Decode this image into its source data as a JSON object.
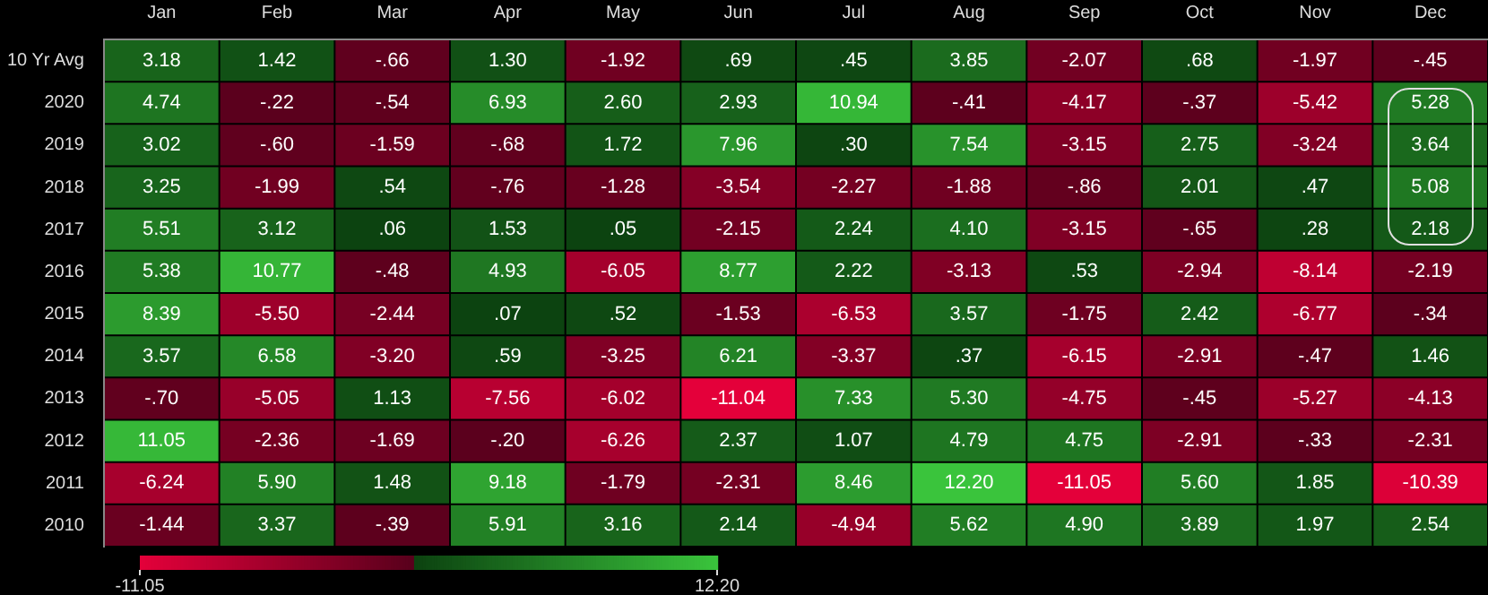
{
  "chart_data": {
    "type": "heatmap",
    "categories": [
      "Jan",
      "Feb",
      "Mar",
      "Apr",
      "May",
      "Jun",
      "Jul",
      "Aug",
      "Sep",
      "Oct",
      "Nov",
      "Dec"
    ],
    "y_categories": [
      "10 Yr Avg",
      "2020",
      "2019",
      "2018",
      "2017",
      "2016",
      "2015",
      "2014",
      "2013",
      "2012",
      "2011",
      "2010"
    ],
    "cells": [
      [
        3.18,
        1.42,
        -0.66,
        1.3,
        -1.92,
        0.69,
        0.45,
        3.85,
        -2.07,
        0.68,
        -1.97,
        -0.45
      ],
      [
        4.74,
        -0.22,
        -0.54,
        6.93,
        2.6,
        2.93,
        10.94,
        -0.41,
        -4.17,
        -0.37,
        -5.42,
        5.28
      ],
      [
        3.02,
        -0.6,
        -1.59,
        -0.68,
        1.72,
        7.96,
        0.3,
        7.54,
        -3.15,
        2.75,
        -3.24,
        3.64
      ],
      [
        3.25,
        -1.99,
        0.54,
        -0.76,
        -1.28,
        -3.54,
        -2.27,
        -1.88,
        -0.86,
        2.01,
        0.47,
        5.08
      ],
      [
        5.51,
        3.12,
        0.06,
        1.53,
        0.05,
        -2.15,
        2.24,
        4.1,
        -3.15,
        -0.65,
        0.28,
        2.18
      ],
      [
        5.38,
        10.77,
        -0.48,
        4.93,
        -6.05,
        8.77,
        2.22,
        -3.13,
        0.53,
        -2.94,
        -8.14,
        -2.19
      ],
      [
        8.39,
        -5.5,
        -2.44,
        0.07,
        0.52,
        -1.53,
        -6.53,
        3.57,
        -1.75,
        2.42,
        -6.77,
        -0.34
      ],
      [
        3.57,
        6.58,
        -3.2,
        0.59,
        -3.25,
        6.21,
        -3.37,
        0.37,
        -6.15,
        -2.91,
        -0.47,
        1.46
      ],
      [
        -0.7,
        -5.05,
        1.13,
        -7.56,
        -6.02,
        -11.04,
        7.33,
        5.3,
        -4.75,
        -0.45,
        -5.27,
        -4.13
      ],
      [
        11.05,
        -2.36,
        -1.69,
        -0.2,
        -6.26,
        2.37,
        1.07,
        4.79,
        4.75,
        -2.91,
        -0.33,
        -2.31
      ],
      [
        -6.24,
        5.9,
        1.48,
        9.18,
        -1.79,
        -2.31,
        8.46,
        12.2,
        -11.05,
        5.6,
        1.85,
        -10.39
      ],
      [
        -1.44,
        3.37,
        -0.39,
        5.91,
        3.16,
        2.14,
        -4.94,
        5.62,
        4.9,
        3.89,
        1.97,
        2.54
      ]
    ],
    "cell_labels": [
      [
        "3.18",
        "1.42",
        "-.66",
        "1.30",
        "-1.92",
        ".69",
        ".45",
        "3.85",
        "-2.07",
        ".68",
        "-1.97",
        "-.45"
      ],
      [
        "4.74",
        "-.22",
        "-.54",
        "6.93",
        "2.60",
        "2.93",
        "10.94",
        "-.41",
        "-4.17",
        "-.37",
        "-5.42",
        "5.28"
      ],
      [
        "3.02",
        "-.60",
        "-1.59",
        "-.68",
        "1.72",
        "7.96",
        ".30",
        "7.54",
        "-3.15",
        "2.75",
        "-3.24",
        "3.64"
      ],
      [
        "3.25",
        "-1.99",
        ".54",
        "-.76",
        "-1.28",
        "-3.54",
        "-2.27",
        "-1.88",
        "-.86",
        "2.01",
        ".47",
        "5.08"
      ],
      [
        "5.51",
        "3.12",
        ".06",
        "1.53",
        ".05",
        "-2.15",
        "2.24",
        "4.10",
        "-3.15",
        "-.65",
        ".28",
        "2.18"
      ],
      [
        "5.38",
        "10.77",
        "-.48",
        "4.93",
        "-6.05",
        "8.77",
        "2.22",
        "-3.13",
        ".53",
        "-2.94",
        "-8.14",
        "-2.19"
      ],
      [
        "8.39",
        "-5.50",
        "-2.44",
        ".07",
        ".52",
        "-1.53",
        "-6.53",
        "3.57",
        "-1.75",
        "2.42",
        "-6.77",
        "-.34"
      ],
      [
        "3.57",
        "6.58",
        "-3.20",
        ".59",
        "-3.25",
        "6.21",
        "-3.37",
        ".37",
        "-6.15",
        "-2.91",
        "-.47",
        "1.46"
      ],
      [
        "-.70",
        "-5.05",
        "1.13",
        "-7.56",
        "-6.02",
        "-11.04",
        "7.33",
        "5.30",
        "-4.75",
        "-.45",
        "-5.27",
        "-4.13"
      ],
      [
        "11.05",
        "-2.36",
        "-1.69",
        "-.20",
        "-6.26",
        "2.37",
        "1.07",
        "4.79",
        "4.75",
        "-2.91",
        "-.33",
        "-2.31"
      ],
      [
        "-6.24",
        "5.90",
        "1.48",
        "9.18",
        "-1.79",
        "-2.31",
        "8.46",
        "12.20",
        "-11.05",
        "5.60",
        "1.85",
        "-10.39"
      ],
      [
        "-1.44",
        "3.37",
        "-.39",
        "5.91",
        "3.16",
        "2.14",
        "-4.94",
        "5.62",
        "4.90",
        "3.89",
        "1.97",
        "2.54"
      ]
    ],
    "clim": [
      -11.05,
      12.2
    ],
    "cticks": [
      -11.05,
      {
        "value": 12.2,
        "label": "12.20"
      }
    ]
  }
}
